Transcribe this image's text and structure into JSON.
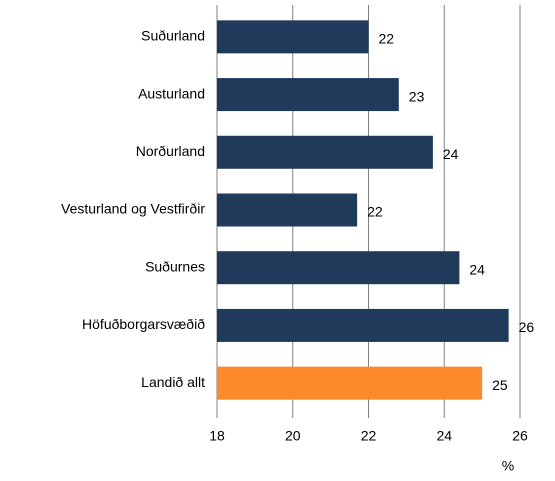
{
  "chart_data": {
    "type": "barh",
    "categories": [
      "Suðurland",
      "Austurland",
      "Norðurland",
      "Vesturland og Vestfirðir",
      "Suðurnes",
      "Höfuðborgarsvæðið",
      "Landið allt"
    ],
    "values": [
      22.0,
      22.8,
      23.7,
      21.7,
      24.4,
      25.7,
      25.0
    ],
    "value_labels": [
      "22",
      "23",
      "24",
      "22",
      "24",
      "26",
      "25"
    ],
    "colors": [
      "#203a5c",
      "#203a5c",
      "#203a5c",
      "#203a5c",
      "#203a5c",
      "#203a5c",
      "#fd8a2a"
    ],
    "xlim": [
      18,
      26
    ],
    "xticks": [
      18,
      20,
      22,
      24,
      26
    ],
    "grid": true,
    "x_label": "%"
  }
}
